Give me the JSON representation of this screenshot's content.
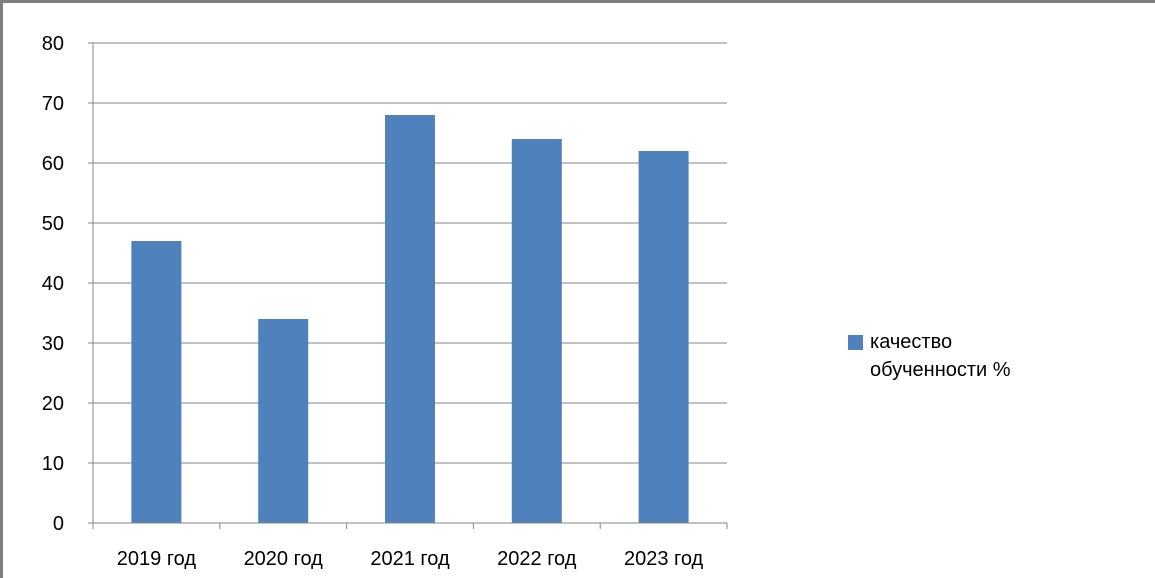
{
  "chart_data": {
    "type": "bar",
    "categories": [
      "2019 год",
      "2020 год",
      "2021 год",
      "2022 год",
      "2023 год"
    ],
    "series": [
      {
        "name": "качество обученности %",
        "values": [
          47,
          34,
          68,
          64,
          62
        ],
        "color": "#4f81bd"
      }
    ],
    "ylim": [
      0,
      80
    ],
    "yticks": [
      0,
      10,
      20,
      30,
      40,
      50,
      60,
      70,
      80
    ],
    "grid": true,
    "legend_position": "right"
  },
  "colors": {
    "bar": "#4f81bd",
    "gridline": "#868686",
    "axis": "#868686",
    "frame": "#7f7f7f"
  }
}
